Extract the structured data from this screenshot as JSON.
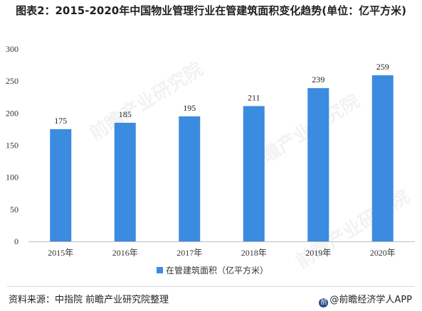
{
  "title": "图表2：2015-2020年中国物业管理行业在管建筑面积变化趋势(单位：亿平方米)",
  "source": "资料来源：中指院 前瞻产业研究院整理",
  "brand": "@前瞻经济学人APP",
  "watermark": "前瞻产业研究院",
  "colors": {
    "bar": "#3b8be0",
    "grid": "#d9d9d9",
    "axis": "#bfbfbf"
  },
  "chart_data": {
    "type": "bar",
    "categories": [
      "2015年",
      "2016年",
      "2017年",
      "2018年",
      "2019年",
      "2020年"
    ],
    "series": [
      {
        "name": "在管建筑面积（亿平方米）",
        "values": [
          175,
          185,
          195,
          211,
          239,
          259
        ]
      }
    ],
    "ylim": [
      0,
      300
    ],
    "yticks": [
      0,
      50,
      100,
      150,
      200,
      250,
      300
    ],
    "grid": false,
    "legend": "bottom-center",
    "data_labels": true
  }
}
